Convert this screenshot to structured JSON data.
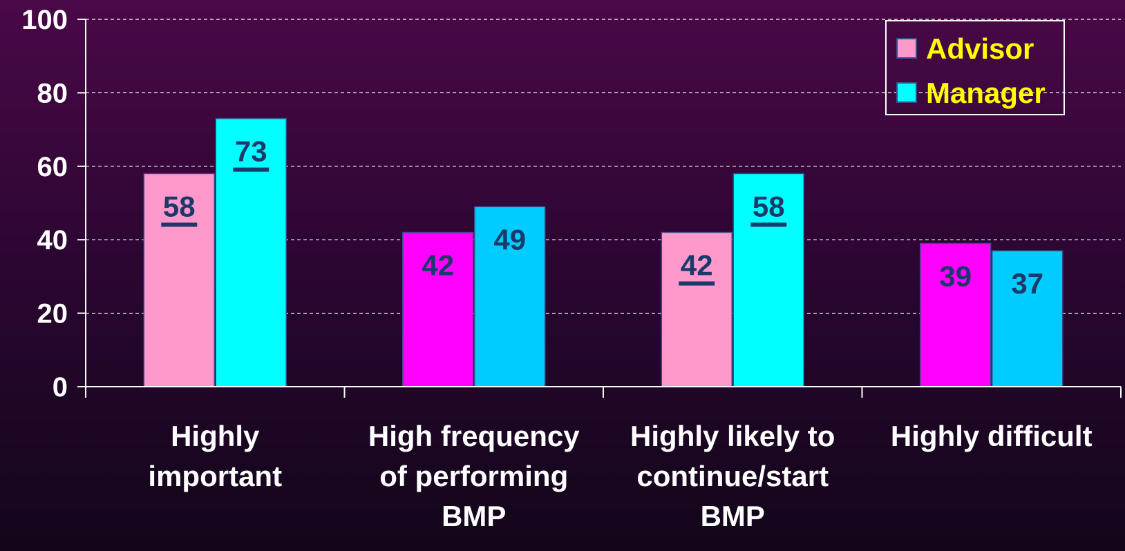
{
  "chart_data": {
    "type": "bar",
    "title": "",
    "xlabel": "",
    "ylabel": "",
    "ylim": [
      0,
      100
    ],
    "yticks": [
      0,
      20,
      40,
      60,
      80,
      100
    ],
    "grid": true,
    "legend_position": "top-right",
    "categories": [
      [
        "Highly",
        "important"
      ],
      [
        "High frequency",
        "of performing",
        "BMP"
      ],
      [
        "Highly likely to",
        "continue/start",
        "BMP"
      ],
      [
        "Highly difficult"
      ]
    ],
    "series": [
      {
        "name": "Advisor",
        "color": "#ff99cc",
        "values": [
          58,
          42,
          42,
          39
        ],
        "bar_colors": [
          "#ff99cc",
          "#ff00ff",
          "#ff99cc",
          "#ff00ff"
        ],
        "underlined": [
          true,
          false,
          true,
          false
        ]
      },
      {
        "name": "Manager",
        "color": "#00ffff",
        "values": [
          73,
          49,
          58,
          37
        ],
        "bar_colors": [
          "#00ffff",
          "#00ccff",
          "#00ffff",
          "#00ccff"
        ],
        "underlined": [
          true,
          false,
          true,
          false
        ]
      }
    ]
  },
  "colors": {
    "axis": "#ffffff",
    "gridline": "#ffffff",
    "data_label": "#1b3a6b",
    "legend_text": "#ffff00",
    "tick_text": "#ffffff",
    "bar_outline": "#3a4a8a"
  }
}
